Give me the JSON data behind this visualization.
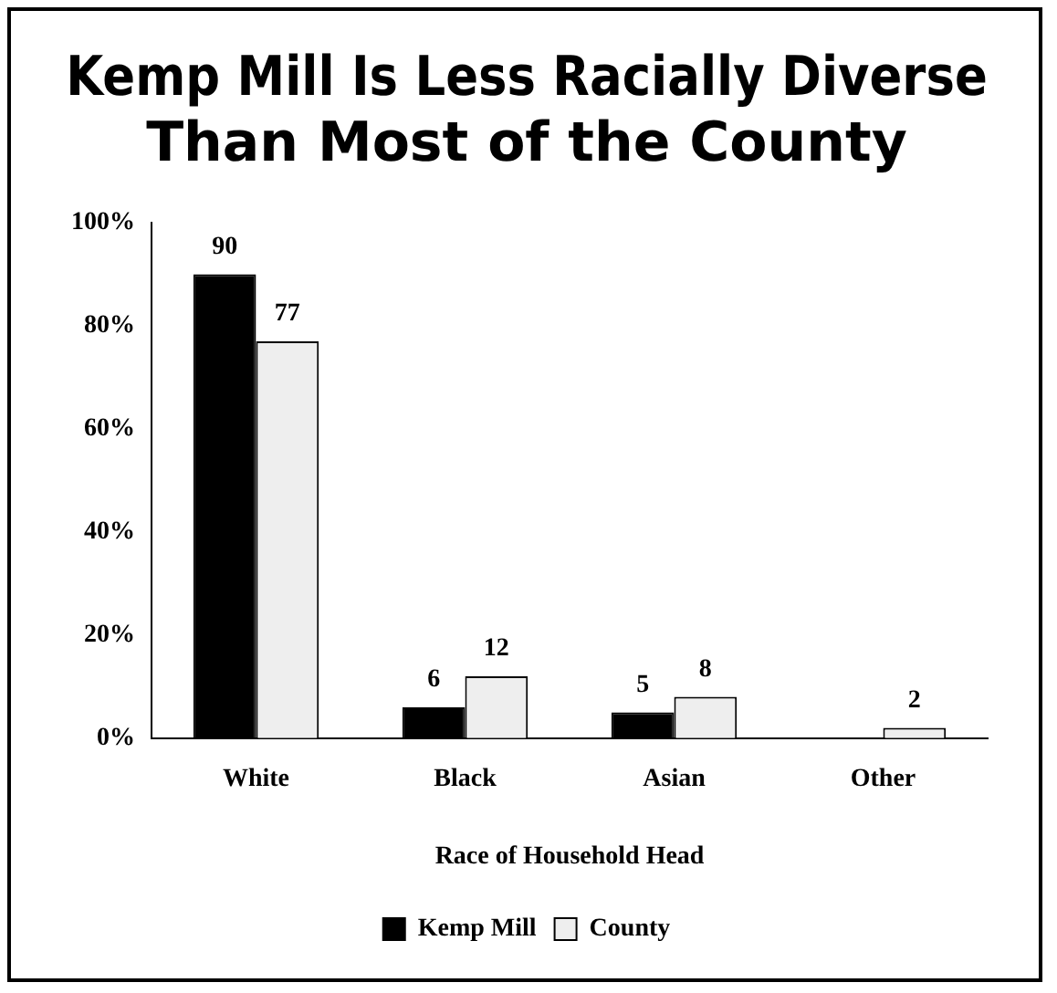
{
  "chart_data": {
    "type": "bar",
    "title": [
      "Kemp Mill Is Less Racially Diverse",
      "Than Most of the County"
    ],
    "xlabel": "Race of Household Head",
    "categories": [
      "White",
      "Black",
      "Asian",
      "Other"
    ],
    "series": [
      {
        "name": "Kemp Mill",
        "color": "#000000",
        "values": [
          90,
          6,
          5,
          null
        ]
      },
      {
        "name": "County",
        "color": "#eeeeee",
        "values": [
          77,
          12,
          8,
          2
        ]
      }
    ],
    "ylim": [
      0,
      100
    ],
    "yticks": [
      {
        "value": 0,
        "label": "0%"
      },
      {
        "value": 20,
        "label": "20%"
      },
      {
        "value": 40,
        "label": "40%"
      },
      {
        "value": 60,
        "label": "60%"
      },
      {
        "value": 80,
        "label": "80%"
      },
      {
        "value": 100,
        "label": "100%"
      }
    ],
    "data_labels": true,
    "grid": false,
    "legend": "bottom"
  }
}
